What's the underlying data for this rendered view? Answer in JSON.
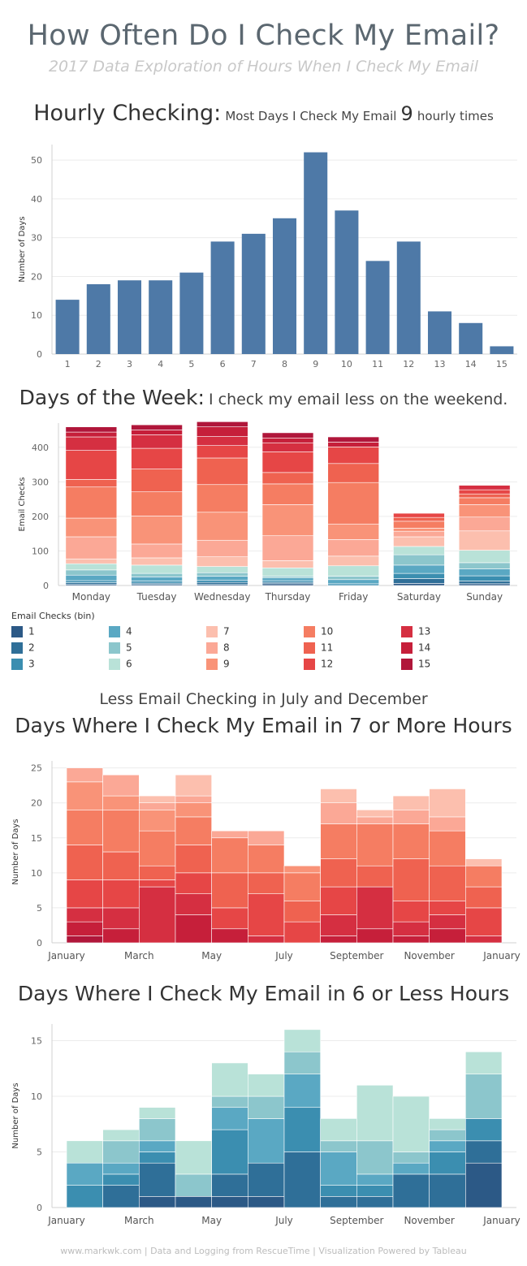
{
  "header": {
    "title": "How Often Do I Check My Email?",
    "subtitle": "2017 Data Exploration of Hours When I Check My Email"
  },
  "hourly": {
    "head": "Hourly Checking:",
    "note_pre": "Most Days I Check My Email",
    "note_num": "9",
    "note_post": "hourly times"
  },
  "weekday": {
    "head": "Days of the Week:",
    "note": "I check my email less on the weekend."
  },
  "legend": {
    "title": "Email Checks (bin)",
    "items": [
      "1",
      "2",
      "3",
      "4",
      "5",
      "6",
      "7",
      "8",
      "9",
      "10",
      "11",
      "12",
      "13",
      "14",
      "15"
    ]
  },
  "caption": "Less Email Checking in July and December",
  "seven_title": "Days Where I Check My Email in 7 or More Hours",
  "six_title": "Days Where I Check My Email in 6 or Less Hours",
  "footer": "www.markwk.com | Data and Logging from RescueTime | Visualization Powered by Tableau",
  "colors": {
    "hourly_bar": "#4e79a7",
    "bins": [
      "#2c5986",
      "#2f6f98",
      "#3b8eb0",
      "#5aa8c3",
      "#8cc6cc",
      "#b9e2d8",
      "#fcbfae",
      "#fba896",
      "#f99378",
      "#f57d62",
      "#ef6250",
      "#e64646",
      "#d52f41",
      "#c61f3a",
      "#b0163a"
    ]
  },
  "chart_data": [
    {
      "type": "bar",
      "id": "hourly",
      "categories": [
        "1",
        "2",
        "3",
        "4",
        "5",
        "6",
        "7",
        "8",
        "9",
        "10",
        "11",
        "12",
        "13",
        "14",
        "15"
      ],
      "values": [
        14,
        18,
        19,
        19,
        21,
        29,
        31,
        35,
        52,
        37,
        24,
        29,
        11,
        8,
        2
      ],
      "ylabel": "Number of Days",
      "ylim": [
        0,
        54
      ],
      "yticks": [
        0,
        10,
        20,
        30,
        40,
        50
      ],
      "grid": true
    },
    {
      "type": "bar",
      "id": "weekday",
      "stacked": true,
      "categories": [
        "Monday",
        "Tuesday",
        "Wednesday",
        "Thursday",
        "Friday",
        "Saturday",
        "Sunday"
      ],
      "series": [
        {
          "name": "1",
          "values": [
            3,
            3,
            3,
            5,
            0,
            6,
            5
          ]
        },
        {
          "name": "2",
          "values": [
            5,
            4,
            6,
            4,
            0,
            14,
            8
          ]
        },
        {
          "name": "3",
          "values": [
            6,
            6,
            6,
            5,
            5,
            15,
            15
          ]
        },
        {
          "name": "4",
          "values": [
            16,
            12,
            12,
            8,
            12,
            24,
            20
          ]
        },
        {
          "name": "5",
          "values": [
            15,
            10,
            10,
            5,
            10,
            30,
            18
          ]
        },
        {
          "name": "6",
          "values": [
            18,
            24,
            18,
            24,
            30,
            24,
            36
          ]
        },
        {
          "name": "7",
          "values": [
            14,
            21,
            28,
            21,
            28,
            28,
            56
          ]
        },
        {
          "name": "8",
          "values": [
            64,
            40,
            48,
            72,
            48,
            16,
            40
          ]
        },
        {
          "name": "9",
          "values": [
            54,
            81,
            81,
            90,
            45,
            9,
            36
          ]
        },
        {
          "name": "10",
          "values": [
            90,
            70,
            80,
            60,
            120,
            20,
            20
          ]
        },
        {
          "name": "11",
          "values": [
            22,
            66,
            77,
            33,
            55,
            11,
            11
          ]
        },
        {
          "name": "12",
          "values": [
            84,
            60,
            36,
            60,
            48,
            12,
            12
          ]
        },
        {
          "name": "13",
          "values": [
            39,
            39,
            26,
            26,
            0,
            0,
            13
          ]
        },
        {
          "name": "14",
          "values": [
            14,
            14,
            28,
            14,
            14,
            0,
            0
          ]
        },
        {
          "name": "15",
          "values": [
            15,
            15,
            15,
            15,
            15,
            0,
            0
          ]
        }
      ],
      "ylabel": "Email Checks",
      "ylim": [
        0,
        470
      ],
      "yticks": [
        0,
        100,
        200,
        300,
        400
      ],
      "grid": true
    },
    {
      "type": "bar",
      "id": "seven",
      "stacked": true,
      "categories": [
        "January",
        "February",
        "March",
        "April",
        "May",
        "June",
        "July",
        "August",
        "September",
        "October",
        "November",
        "December"
      ],
      "tick_labels": [
        "January",
        "",
        "March",
        "",
        "May",
        "",
        "July",
        "",
        "September",
        "",
        "November",
        "",
        "January"
      ],
      "series": [
        {
          "name": "15",
          "values": [
            1,
            0,
            0,
            0,
            0,
            0,
            0,
            0,
            0,
            0,
            0,
            0
          ]
        },
        {
          "name": "14",
          "values": [
            2,
            2,
            0,
            4,
            2,
            0,
            0,
            1,
            2,
            1,
            2,
            0
          ]
        },
        {
          "name": "13",
          "values": [
            2,
            3,
            8,
            3,
            0,
            1,
            0,
            3,
            6,
            2,
            2,
            1
          ]
        },
        {
          "name": "12",
          "values": [
            4,
            4,
            1,
            3,
            3,
            6,
            3,
            4,
            0,
            3,
            2,
            4
          ]
        },
        {
          "name": "11",
          "values": [
            5,
            4,
            2,
            4,
            5,
            3,
            3,
            4,
            3,
            6,
            5,
            3
          ]
        },
        {
          "name": "10",
          "values": [
            5,
            6,
            5,
            4,
            5,
            4,
            4,
            5,
            6,
            5,
            5,
            3
          ]
        },
        {
          "name": "9",
          "values": [
            4,
            2,
            3,
            2,
            0,
            0,
            1,
            0,
            0,
            0,
            0,
            0
          ]
        },
        {
          "name": "8",
          "values": [
            2,
            3,
            1,
            1,
            1,
            2,
            0,
            3,
            1,
            2,
            2,
            0
          ]
        },
        {
          "name": "7",
          "values": [
            0,
            0,
            1,
            3,
            0,
            0,
            0,
            2,
            1,
            2,
            4,
            1
          ]
        }
      ],
      "ylabel": "Number of Days",
      "ylim": [
        0,
        26
      ],
      "yticks": [
        0,
        5,
        10,
        15,
        20,
        25
      ],
      "grid": true
    },
    {
      "type": "bar",
      "id": "six",
      "stacked": true,
      "categories": [
        "January",
        "February",
        "March",
        "April",
        "May",
        "June",
        "July",
        "August",
        "September",
        "October",
        "November",
        "December"
      ],
      "tick_labels": [
        "January",
        "",
        "March",
        "",
        "May",
        "",
        "July",
        "",
        "September",
        "",
        "November",
        "",
        "January"
      ],
      "series": [
        {
          "name": "1",
          "values": [
            0,
            0,
            1,
            1,
            1,
            1,
            0,
            0,
            0,
            0,
            0,
            4
          ]
        },
        {
          "name": "2",
          "values": [
            0,
            2,
            3,
            0,
            2,
            3,
            5,
            1,
            1,
            3,
            3,
            2
          ]
        },
        {
          "name": "3",
          "values": [
            2,
            1,
            1,
            0,
            4,
            0,
            4,
            1,
            1,
            0,
            2,
            2
          ]
        },
        {
          "name": "4",
          "values": [
            2,
            1,
            1,
            0,
            2,
            4,
            3,
            3,
            1,
            1,
            1,
            0
          ]
        },
        {
          "name": "5",
          "values": [
            0,
            2,
            2,
            2,
            1,
            2,
            2,
            1,
            3,
            1,
            1,
            4
          ]
        },
        {
          "name": "6",
          "values": [
            2,
            1,
            1,
            3,
            3,
            2,
            2,
            2,
            5,
            5,
            1,
            2
          ]
        }
      ],
      "ylabel": "Number of Days",
      "ylim": [
        0,
        16.5
      ],
      "yticks": [
        0,
        5,
        10,
        15
      ],
      "grid": true
    }
  ]
}
